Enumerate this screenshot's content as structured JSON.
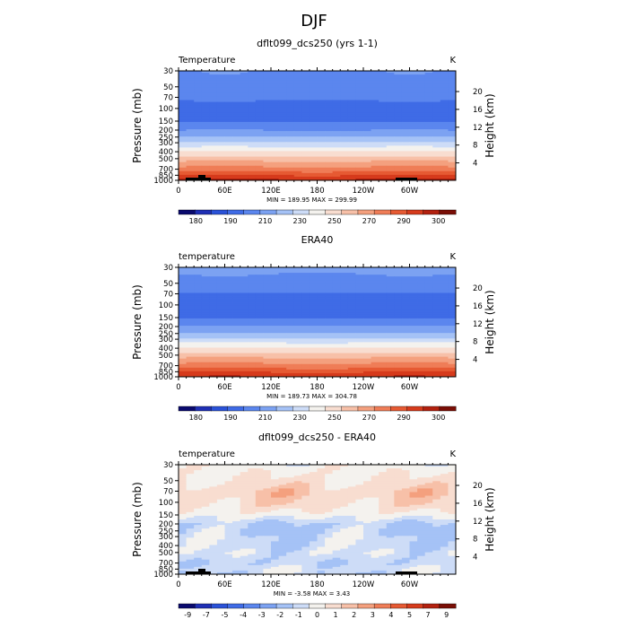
{
  "page": {
    "title": "DJF"
  },
  "chart_data": [
    {
      "type": "heatmap",
      "title": "dflt099_dcs250 (yrs 1-1)",
      "field_label": "Temperature",
      "units": "K",
      "xlabel": "",
      "ylabel": "Pressure (mb)",
      "y2label": "Height (km)",
      "x_ticks": [
        "0",
        "60E",
        "120E",
        "180",
        "120W",
        "60W"
      ],
      "pressure_ticks": [
        "30",
        "50",
        "70",
        "100",
        "150",
        "200",
        "250",
        "300",
        "400",
        "500",
        "700",
        "850",
        "1000"
      ],
      "height_ticks": [
        "20",
        "16",
        "12",
        "8",
        "4"
      ],
      "min_max_text": "MIN = 189.95   MAX = 299.99",
      "min": 189.95,
      "max": 299.99,
      "colorbar_labels": [
        "180",
        "190",
        "210",
        "230",
        "250",
        "270",
        "290",
        "300"
      ],
      "colorbar_colors": [
        "#0a0a6e",
        "#1f2fb5",
        "#2a52d8",
        "#3f6be6",
        "#5b86ee",
        "#7ca2f2",
        "#a5c2f6",
        "#cddcf7",
        "#f4f2ee",
        "#f8ddd0",
        "#f7c0a8",
        "#f4a07e",
        "#ef7d57",
        "#e65a33",
        "#d63b1c",
        "#b3210f",
        "#7a0e06"
      ],
      "profile_levels": [
        [
          "30",
          213
        ],
        [
          "50",
          212
        ],
        [
          "70",
          207
        ],
        [
          "100",
          202
        ],
        [
          "150",
          205
        ],
        [
          "200",
          213
        ],
        [
          "250",
          221
        ],
        [
          "300",
          229
        ],
        [
          "400",
          245
        ],
        [
          "500",
          255
        ],
        [
          "700",
          270
        ],
        [
          "850",
          282
        ],
        [
          "1000",
          292
        ]
      ]
    },
    {
      "type": "heatmap",
      "title": "ERA40",
      "field_label": "temperature",
      "units": "K",
      "xlabel": "",
      "ylabel": "Pressure (mb)",
      "y2label": "Height (km)",
      "x_ticks": [
        "0",
        "60E",
        "120E",
        "180",
        "120W",
        "60W"
      ],
      "pressure_ticks": [
        "30",
        "50",
        "70",
        "100",
        "150",
        "200",
        "250",
        "300",
        "400",
        "500",
        "700",
        "850",
        "1000"
      ],
      "height_ticks": [
        "20",
        "16",
        "12",
        "8",
        "4"
      ],
      "min_max_text": "MIN = 189.73   MAX = 304.78",
      "min": 189.73,
      "max": 304.78,
      "colorbar_labels": [
        "180",
        "190",
        "210",
        "230",
        "250",
        "270",
        "290",
        "300"
      ],
      "colorbar_colors": [
        "#0a0a6e",
        "#1f2fb5",
        "#2a52d8",
        "#3f6be6",
        "#5b86ee",
        "#7ca2f2",
        "#a5c2f6",
        "#cddcf7",
        "#f4f2ee",
        "#f8ddd0",
        "#f7c0a8",
        "#f4a07e",
        "#ef7d57",
        "#e65a33",
        "#d63b1c",
        "#b3210f",
        "#7a0e06"
      ],
      "profile_levels": [
        [
          "30",
          215
        ],
        [
          "50",
          211
        ],
        [
          "70",
          205
        ],
        [
          "100",
          200
        ],
        [
          "150",
          205
        ],
        [
          "200",
          214
        ],
        [
          "250",
          222
        ],
        [
          "300",
          230
        ],
        [
          "400",
          245
        ],
        [
          "500",
          255
        ],
        [
          "700",
          270
        ],
        [
          "850",
          281
        ],
        [
          "1000",
          290
        ]
      ]
    },
    {
      "type": "heatmap",
      "title": "dflt099_dcs250 - ERA40",
      "field_label": "temperature",
      "units": "K",
      "xlabel": "",
      "ylabel": "Pressure (mb)",
      "y2label": "Height (km)",
      "x_ticks": [
        "0",
        "60E",
        "120E",
        "180",
        "120W",
        "60W"
      ],
      "pressure_ticks": [
        "30",
        "50",
        "70",
        "100",
        "150",
        "200",
        "250",
        "300",
        "400",
        "500",
        "700",
        "850",
        "1000"
      ],
      "height_ticks": [
        "20",
        "16",
        "12",
        "8",
        "4"
      ],
      "min_max_text": "MIN = -3.58   MAX = 3.43",
      "min": -3.58,
      "max": 3.43,
      "colorbar_labels": [
        "-9",
        "-7",
        "-5",
        "-4",
        "-3",
        "-2",
        "-1",
        "0",
        "1",
        "2",
        "3",
        "4",
        "5",
        "7",
        "9"
      ],
      "colorbar_colors": [
        "#0a0a6e",
        "#1f2fb5",
        "#2a52d8",
        "#3f6be6",
        "#5b86ee",
        "#7ca2f2",
        "#a5c2f6",
        "#cddcf7",
        "#f4f2ee",
        "#f8ddd0",
        "#f7c0a8",
        "#f4a07e",
        "#ef7d57",
        "#e65a33",
        "#d63b1c",
        "#b3210f",
        "#7a0e06"
      ],
      "profile_levels": [
        [
          "30",
          0
        ],
        [
          "50",
          0.6
        ],
        [
          "70",
          1.6
        ],
        [
          "100",
          1.2
        ],
        [
          "150",
          0
        ],
        [
          "200",
          -1.6
        ],
        [
          "250",
          -1.4
        ],
        [
          "300",
          -1.2
        ],
        [
          "400",
          -1.1
        ],
        [
          "500",
          -0.8
        ],
        [
          "700",
          -1.4
        ],
        [
          "850",
          -0.9
        ],
        [
          "1000",
          -1.2
        ]
      ]
    }
  ]
}
